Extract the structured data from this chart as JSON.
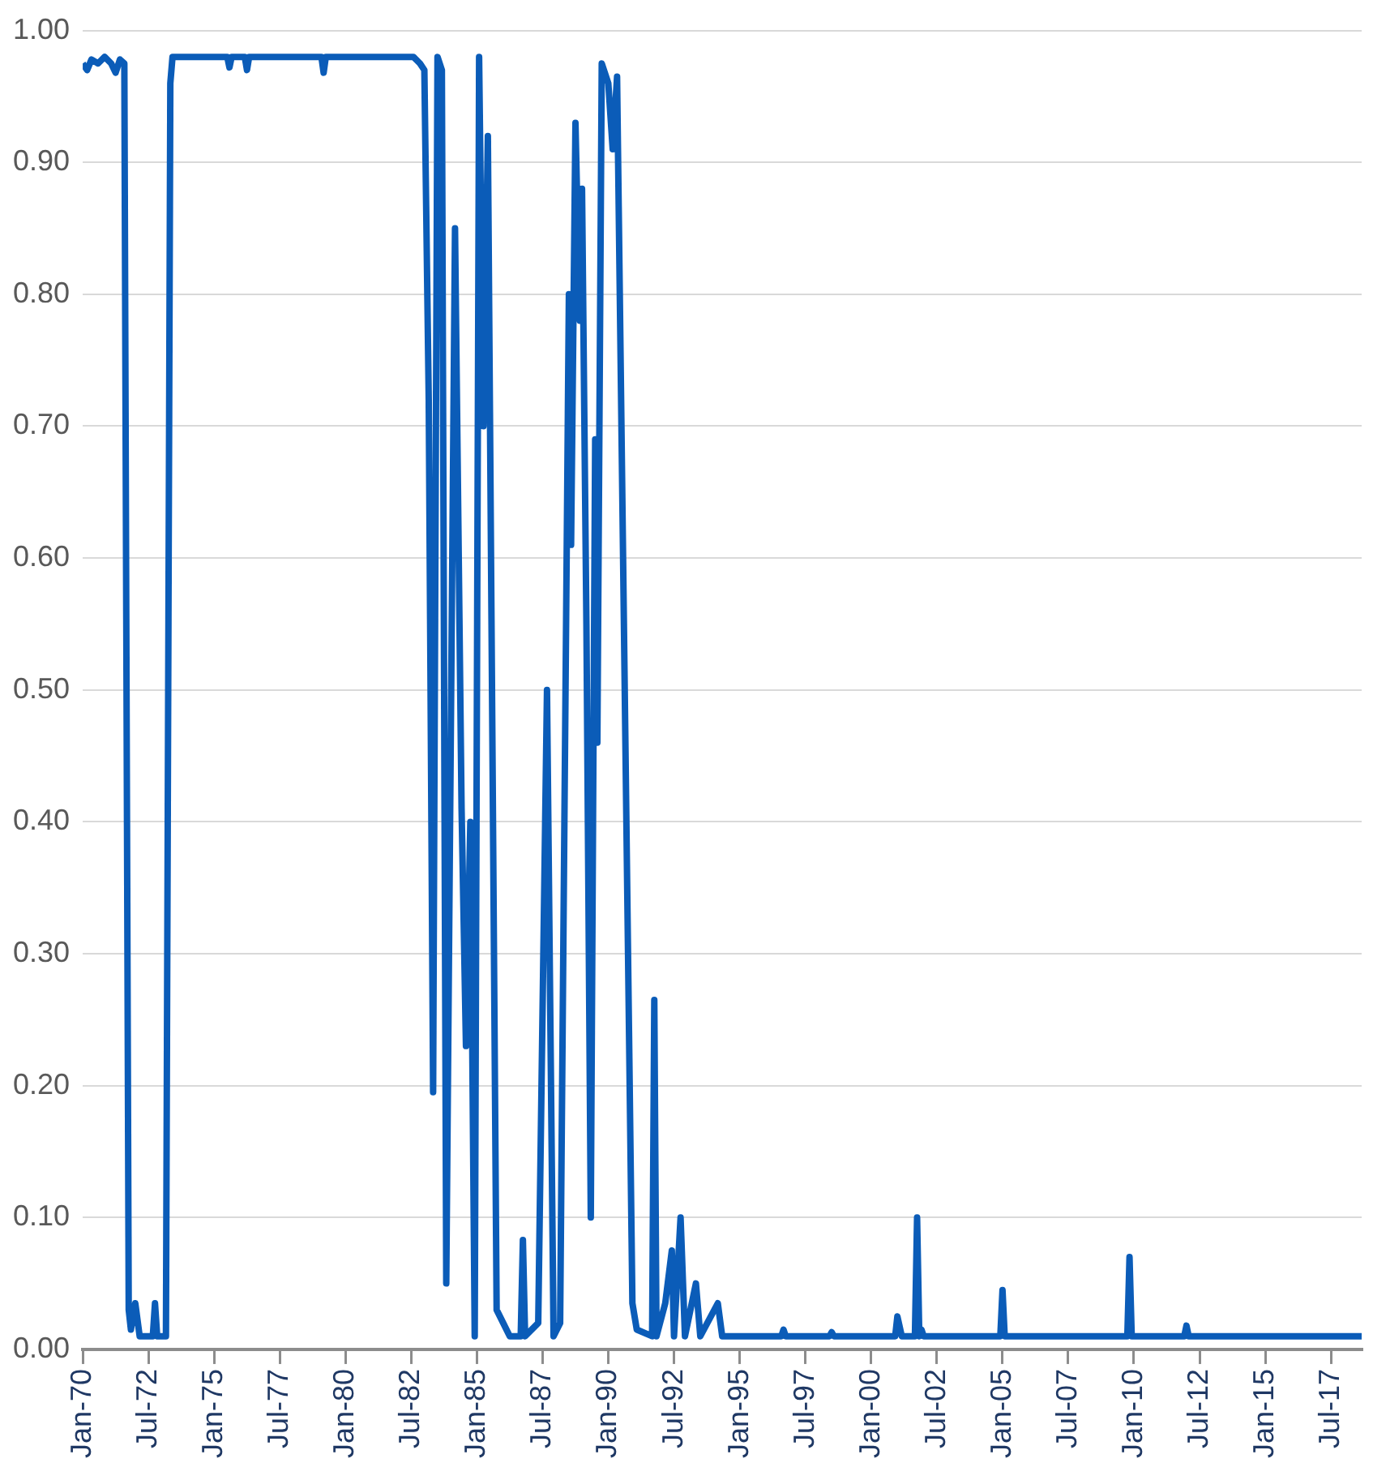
{
  "chart_data": {
    "type": "line",
    "line_style": "solid",
    "marker": "none",
    "grid": "y",
    "legend": false,
    "xlim": [
      "1970-01",
      "2018-09"
    ],
    "xticks": [
      {
        "value": "1970-01",
        "label": "Jan-70"
      },
      {
        "value": "1972-07",
        "label": "Jul-72"
      },
      {
        "value": "1975-01",
        "label": "Jan-75"
      },
      {
        "value": "1977-07",
        "label": "Jul-77"
      },
      {
        "value": "1980-01",
        "label": "Jan-80"
      },
      {
        "value": "1982-07",
        "label": "Jul-82"
      },
      {
        "value": "1985-01",
        "label": "Jan-85"
      },
      {
        "value": "1987-07",
        "label": "Jul-87"
      },
      {
        "value": "1990-01",
        "label": "Jan-90"
      },
      {
        "value": "1992-07",
        "label": "Jul-92"
      },
      {
        "value": "1995-01",
        "label": "Jan-95"
      },
      {
        "value": "1997-07",
        "label": "Jul-97"
      },
      {
        "value": "2000-01",
        "label": "Jan-00"
      },
      {
        "value": "2002-07",
        "label": "Jul-02"
      },
      {
        "value": "2005-01",
        "label": "Jan-05"
      },
      {
        "value": "2007-07",
        "label": "Jul-07"
      },
      {
        "value": "2010-01",
        "label": "Jan-10"
      },
      {
        "value": "2012-07",
        "label": "Jul-12"
      },
      {
        "value": "2015-01",
        "label": "Jan-15"
      },
      {
        "value": "2017-07",
        "label": "Jul-17"
      }
    ],
    "ylim": [
      0,
      1
    ],
    "yticks": [
      {
        "value": 0,
        "label": "0.00"
      },
      {
        "value": 0.1,
        "label": "0.10"
      },
      {
        "value": 0.2,
        "label": "0.20"
      },
      {
        "value": 0.3,
        "label": "0.30"
      },
      {
        "value": 0.4,
        "label": "0.40"
      },
      {
        "value": 0.5,
        "label": "0.50"
      },
      {
        "value": 0.6,
        "label": "0.60"
      },
      {
        "value": 0.7,
        "label": "0.70"
      },
      {
        "value": 0.8,
        "label": "0.80"
      },
      {
        "value": 0.9,
        "label": "0.90"
      },
      {
        "value": 1,
        "label": "1.00"
      }
    ],
    "x": [
      "1970-01",
      "1970-03",
      "1970-05",
      "1970-08",
      "1970-11",
      "1971-02",
      "1971-04",
      "1971-06",
      "1971-08",
      "1971-10",
      "1971-11",
      "1972-01",
      "1972-03",
      "1972-06",
      "1972-09",
      "1972-10",
      "1972-11",
      "1973-03",
      "1973-05",
      "1973-06",
      "1975-07",
      "1975-08",
      "1975-09",
      "1976-03",
      "1976-04",
      "1976-05",
      "1979-02",
      "1979-03",
      "1979-04",
      "1982-08",
      "1982-11",
      "1983-01",
      "1983-03",
      "1983-05",
      "1983-07",
      "1983-09",
      "1983-11",
      "1984-03",
      "1984-06",
      "1984-08",
      "1984-10",
      "1984-12",
      "1985-02",
      "1985-04",
      "1985-06",
      "1985-07",
      "1985-10",
      "1986-01",
      "1986-04",
      "1986-09",
      "1986-10",
      "1986-11",
      "1987-05",
      "1987-09",
      "1987-12",
      "1988-03",
      "1988-07",
      "1988-08",
      "1988-10",
      "1988-12",
      "1989-01",
      "1989-03",
      "1989-05",
      "1989-07",
      "1989-08",
      "1989-10",
      "1990-01",
      "1990-03",
      "1990-05",
      "1990-12",
      "1991-02",
      "1991-09",
      "1991-10",
      "1991-11",
      "1992-03",
      "1992-06",
      "1992-07",
      "1992-10",
      "1992-12",
      "1993-05",
      "1993-07",
      "1994-03",
      "1994-05",
      "1996-08",
      "1996-09",
      "1996-10",
      "1998-06",
      "1998-07",
      "1998-08",
      "2000-12",
      "2001-01",
      "2001-03",
      "2001-09",
      "2001-10",
      "2001-11",
      "2001-12",
      "2002-01",
      "2004-12",
      "2005-01",
      "2005-02",
      "2009-10",
      "2009-11",
      "2009-12",
      "2011-12",
      "2012-01",
      "2012-02",
      "2018-09"
    ],
    "series": [
      {
        "color": "#0b5cb8",
        "values": [
          0.975,
          0.97,
          0.978,
          0.975,
          0.98,
          0.975,
          0.968,
          0.978,
          0.975,
          0.03,
          0.015,
          0.035,
          0.01,
          0.01,
          0.01,
          0.035,
          0.01,
          0.01,
          0.96,
          0.98,
          0.98,
          0.972,
          0.98,
          0.98,
          0.97,
          0.98,
          0.98,
          0.968,
          0.98,
          0.98,
          0.975,
          0.97,
          0.72,
          0.195,
          0.98,
          0.97,
          0.05,
          0.85,
          0.41,
          0.23,
          0.4,
          0.01,
          0.98,
          0.7,
          0.92,
          0.7,
          0.03,
          0.02,
          0.01,
          0.01,
          0.083,
          0.01,
          0.02,
          0.5,
          0.01,
          0.02,
          0.8,
          0.61,
          0.93,
          0.78,
          0.88,
          0.55,
          0.1,
          0.69,
          0.46,
          0.975,
          0.96,
          0.91,
          0.965,
          0.035,
          0.015,
          0.01,
          0.265,
          0.01,
          0.035,
          0.075,
          0.01,
          0.1,
          0.01,
          0.05,
          0.01,
          0.035,
          0.01,
          0.01,
          0.015,
          0.01,
          0.01,
          0.013,
          0.01,
          0.01,
          0.025,
          0.01,
          0.01,
          0.1,
          0.01,
          0.015,
          0.01,
          0.01,
          0.045,
          0.01,
          0.01,
          0.07,
          0.01,
          0.01,
          0.018,
          0.01,
          0.01
        ]
      }
    ]
  }
}
